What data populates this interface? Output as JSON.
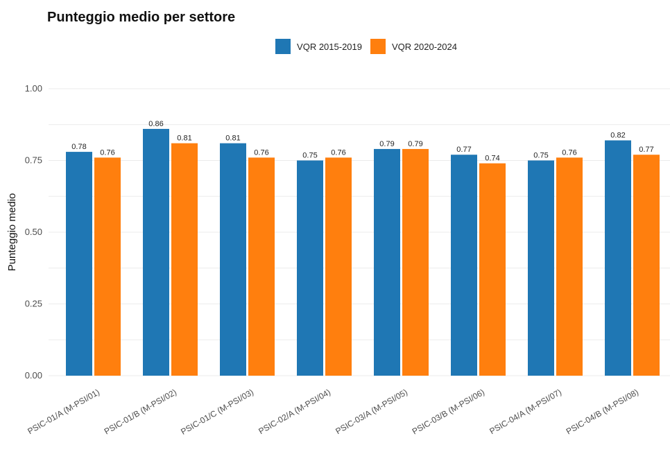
{
  "chart_data": {
    "type": "bar",
    "title": "Punteggio medio per settore",
    "xlabel": "",
    "ylabel": "Punteggio medio",
    "ylim": [
      0,
      1
    ],
    "yticks": [
      "0.00",
      "0.25",
      "0.50",
      "0.75",
      "1.00"
    ],
    "grid": true,
    "legend_position": "top",
    "categories": [
      "PSIC-01/A (M-PSI/01)",
      "PSIC-01/B (M-PSI/02)",
      "PSIC-01/C (M-PSI/03)",
      "PSIC-02/A (M-PSI/04)",
      "PSIC-03/A (M-PSI/05)",
      "PSIC-03/B (M-PSI/06)",
      "PSIC-04/A (M-PSI/07)",
      "PSIC-04/B (M-PSI/08)"
    ],
    "series": [
      {
        "name": "VQR 2015-2019",
        "color": "#1f77b4",
        "values": [
          0.78,
          0.86,
          0.81,
          0.75,
          0.79,
          0.77,
          0.75,
          0.82
        ],
        "labels": [
          "0.78",
          "0.86",
          "0.81",
          "0.75",
          "0.79",
          "0.77",
          "0.75",
          "0.82"
        ]
      },
      {
        "name": "VQR 2020-2024",
        "color": "#ff7f0e",
        "values": [
          0.76,
          0.81,
          0.76,
          0.76,
          0.79,
          0.74,
          0.76,
          0.77
        ],
        "labels": [
          "0.76",
          "0.81",
          "0.76",
          "0.76",
          "0.79",
          "0.74",
          "0.76",
          "0.77"
        ]
      }
    ]
  }
}
